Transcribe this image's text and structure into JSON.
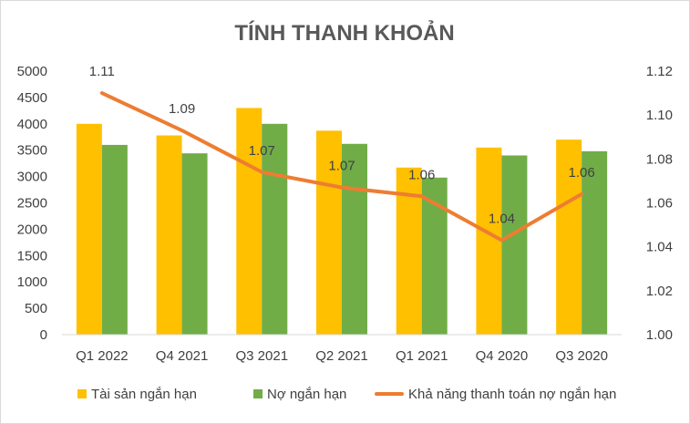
{
  "chart_data": {
    "type": "bar",
    "title": "TÍNH THANH KHOẢN",
    "categories": [
      "Q1 2022",
      "Q4 2021",
      "Q3 2021",
      "Q2 2021",
      "Q1 2021",
      "Q4 2020",
      "Q3 2020"
    ],
    "series": [
      {
        "name": "Tài sản ngắn hạn",
        "type": "bar",
        "axis": "left",
        "color": "#FFC000",
        "values": [
          4000,
          3780,
          4300,
          3870,
          3170,
          3550,
          3700
        ]
      },
      {
        "name": "Nợ ngắn hạn",
        "type": "bar",
        "axis": "left",
        "color": "#70AD47",
        "values": [
          3600,
          3440,
          4000,
          3620,
          2980,
          3400,
          3480
        ]
      },
      {
        "name": "Khả năng thanh toán nợ ngắn hạn",
        "type": "line",
        "axis": "right",
        "color": "#ED7D31",
        "values": [
          1.11,
          1.093,
          1.074,
          1.067,
          1.063,
          1.043,
          1.064
        ],
        "labels": [
          "1.11",
          "1.09",
          "1.07",
          "1.07",
          "1.06",
          "1.04",
          "1.06"
        ]
      }
    ],
    "y_left": {
      "ylim": [
        0,
        5000
      ],
      "ticks": [
        "0",
        "500",
        "1000",
        "1500",
        "2000",
        "2500",
        "3000",
        "3500",
        "4000",
        "4500",
        "5000"
      ]
    },
    "y_right": {
      "ylim": [
        1.0,
        1.12
      ],
      "ticks": [
        "1.00",
        "1.02",
        "1.04",
        "1.06",
        "1.08",
        "1.10",
        "1.12"
      ]
    },
    "grid": false,
    "legend": "bottom"
  }
}
